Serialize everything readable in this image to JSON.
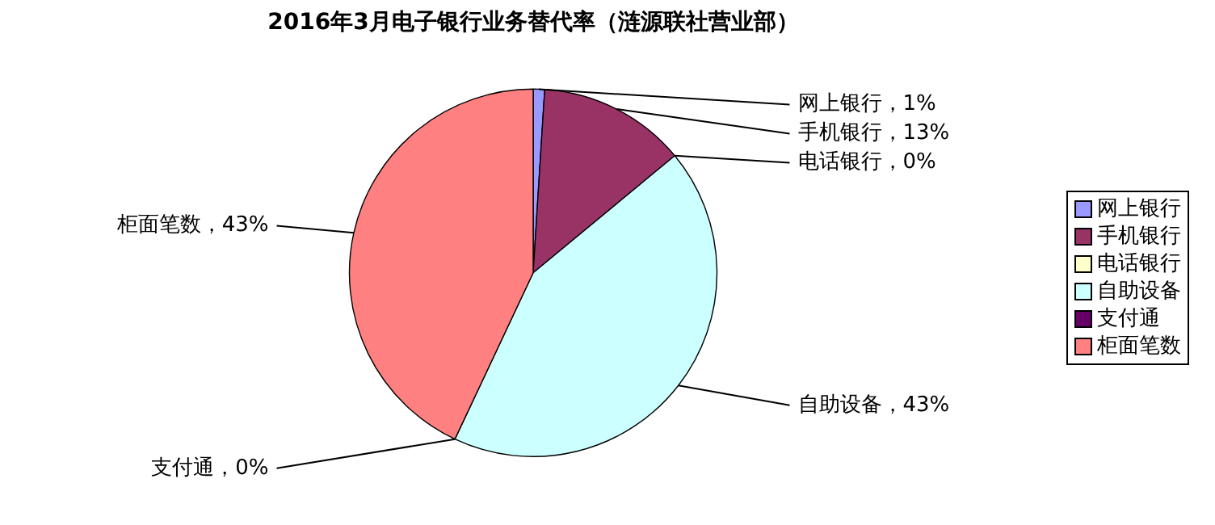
{
  "chart_data": {
    "type": "pie",
    "title": "2016年3月电子银行业务替代率（涟源联社营业部）",
    "categories": [
      "网上银行",
      "手机银行",
      "电话银行",
      "自助设备",
      "支付通",
      "柜面笔数"
    ],
    "values": [
      1,
      13,
      0,
      43,
      0,
      43
    ],
    "colors": [
      "#9999ff",
      "#993366",
      "#ffffcc",
      "#ccffff",
      "#660066",
      "#ff8080"
    ],
    "value_labels": [
      "网上银行，1%",
      "手机银行，13%",
      "电话银行，0%",
      "自助设备，43%",
      "支付通，0%",
      "柜面笔数，43%"
    ],
    "legend": "right"
  }
}
